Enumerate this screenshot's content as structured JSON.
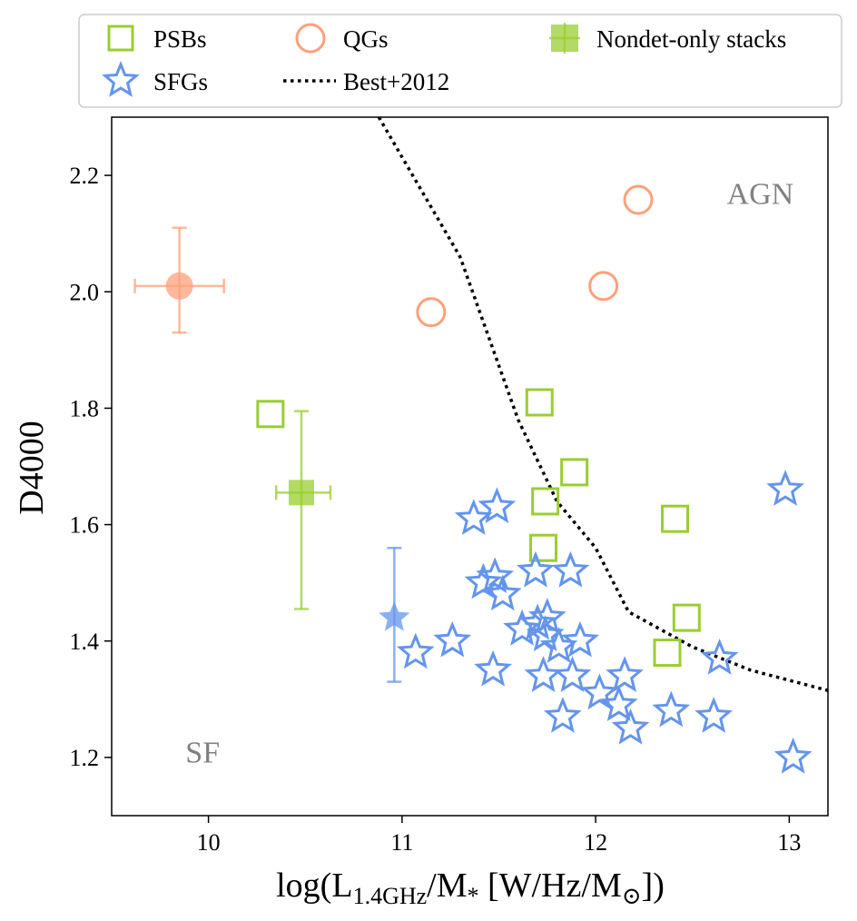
{
  "chart_data": {
    "type": "scatter",
    "title": "",
    "xlabel": "log(L1.4GHz/M* [W/Hz/M⊙])",
    "xlabel_parts": {
      "pre": "log(L",
      "sub1": "1.4GHz",
      "mid": "/M",
      "sub2": "*",
      "post": " [W/Hz/M",
      "sun": "⊙",
      "end": "])"
    },
    "ylabel": "D4000",
    "xlim": [
      9.5,
      13.2
    ],
    "ylim": [
      1.1,
      2.3
    ],
    "xticks": [
      10,
      11,
      12,
      13
    ],
    "xtick_labels": [
      "10",
      "11",
      "12",
      "13"
    ],
    "yticks": [
      1.2,
      1.4,
      1.6,
      1.8,
      2.0,
      2.2
    ],
    "ytick_labels": [
      "1.2",
      "1.4",
      "1.6",
      "1.8",
      "2.0",
      "2.2"
    ],
    "grid": false,
    "legend_position": "top, outside plot",
    "annotations": [
      {
        "text": "AGN",
        "x": 12.85,
        "y": 2.17
      },
      {
        "text": "SF",
        "x": 9.97,
        "y": 1.21
      }
    ],
    "colors": {
      "psb": "#9acd32",
      "qg": "#ffa07a",
      "sfg": "#6495ed",
      "line": "#000000",
      "annotation": "#808080"
    },
    "legend": [
      {
        "label": "PSBs",
        "marker": "square-open",
        "series": "psb"
      },
      {
        "label": "SFGs",
        "marker": "star-open",
        "series": "sfg"
      },
      {
        "label": "QGs",
        "marker": "circle-open",
        "series": "qg"
      },
      {
        "label": "Best+2012",
        "marker": "dotted-line",
        "series": "line"
      },
      {
        "label": "Nondet-only stacks",
        "marker": "square-filled-errorbar",
        "series": "psb"
      }
    ],
    "series": [
      {
        "name": "PSBs",
        "marker": "square-open",
        "color": "#9acd32",
        "points": [
          [
            10.32,
            1.79
          ],
          [
            11.71,
            1.81
          ],
          [
            11.74,
            1.64
          ],
          [
            11.89,
            1.69
          ],
          [
            11.73,
            1.56
          ],
          [
            12.41,
            1.61
          ],
          [
            12.47,
            1.44
          ],
          [
            12.37,
            1.38
          ]
        ]
      },
      {
        "name": "QGs",
        "marker": "circle-open",
        "color": "#ffa07a",
        "points": [
          [
            11.15,
            1.965
          ],
          [
            12.04,
            2.01
          ],
          [
            12.22,
            2.158
          ]
        ]
      },
      {
        "name": "SFGs",
        "marker": "star-open",
        "color": "#6495ed",
        "points": [
          [
            11.37,
            1.61
          ],
          [
            11.49,
            1.63
          ],
          [
            11.42,
            1.5
          ],
          [
            11.48,
            1.51
          ],
          [
            11.52,
            1.48
          ],
          [
            11.69,
            1.52
          ],
          [
            11.87,
            1.52
          ],
          [
            11.62,
            1.42
          ],
          [
            11.7,
            1.43
          ],
          [
            11.75,
            1.44
          ],
          [
            11.74,
            1.41
          ],
          [
            11.81,
            1.39
          ],
          [
            11.92,
            1.4
          ],
          [
            11.07,
            1.38
          ],
          [
            11.26,
            1.4
          ],
          [
            11.47,
            1.35
          ],
          [
            11.73,
            1.34
          ],
          [
            11.88,
            1.34
          ],
          [
            12.02,
            1.31
          ],
          [
            12.15,
            1.34
          ],
          [
            12.12,
            1.29
          ],
          [
            12.18,
            1.25
          ],
          [
            11.83,
            1.27
          ],
          [
            12.39,
            1.28
          ],
          [
            12.61,
            1.27
          ],
          [
            12.64,
            1.37
          ],
          [
            12.98,
            1.66
          ],
          [
            13.02,
            1.2
          ]
        ]
      },
      {
        "name": "QG stack",
        "marker": "circle-filled",
        "color": "#ffa07a",
        "alpha": 0.75,
        "points": [
          [
            9.85,
            2.01
          ]
        ],
        "xerr": [
          0.23,
          0.23
        ],
        "yerr": [
          0.08,
          0.1
        ]
      },
      {
        "name": "PSB stack",
        "marker": "square-filled",
        "color": "#9acd32",
        "alpha": 0.75,
        "points": [
          [
            10.48,
            1.655
          ]
        ],
        "xerr": [
          0.13,
          0.15
        ],
        "yerr": [
          0.2,
          0.14
        ]
      },
      {
        "name": "SFG stack",
        "marker": "star-filled",
        "color": "#6495ed",
        "alpha": 0.75,
        "points": [
          [
            10.96,
            1.44
          ]
        ],
        "xerr": [
          0,
          0
        ],
        "yerr": [
          0.11,
          0.12
        ]
      }
    ],
    "best2012_line": [
      [
        10.88,
        2.3
      ],
      [
        11.3,
        2.06
      ],
      [
        11.6,
        1.78
      ],
      [
        11.8,
        1.64
      ],
      [
        12.0,
        1.56
      ],
      [
        12.17,
        1.45
      ],
      [
        12.5,
        1.39
      ],
      [
        12.8,
        1.35
      ],
      [
        13.2,
        1.315
      ]
    ]
  }
}
